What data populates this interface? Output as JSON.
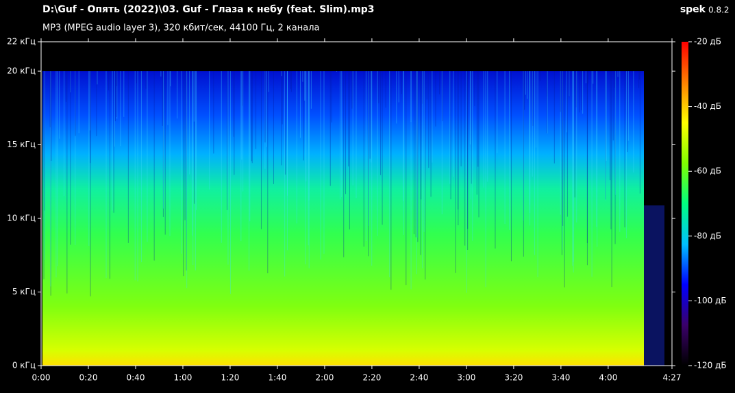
{
  "chart_data": {
    "type": "spectrogram",
    "title": "D:\\Guf - Опять (2022)\\03. Guf - Глаза к небу (feat. Slim).mp3",
    "subtitle": "MP3 (MPEG audio layer 3), 320 кбит/сек, 44100 Гц, 2 канала",
    "app_name": "spek",
    "app_version": "0.8.2",
    "xlim": [
      0,
      267
    ],
    "xticks": [
      {
        "value": 0,
        "label": "0:00"
      },
      {
        "value": 20,
        "label": "0:20"
      },
      {
        "value": 40,
        "label": "0:40"
      },
      {
        "value": 60,
        "label": "1:00"
      },
      {
        "value": 80,
        "label": "1:20"
      },
      {
        "value": 100,
        "label": "1:40"
      },
      {
        "value": 120,
        "label": "2:00"
      },
      {
        "value": 140,
        "label": "2:20"
      },
      {
        "value": 160,
        "label": "2:40"
      },
      {
        "value": 180,
        "label": "3:00"
      },
      {
        "value": 200,
        "label": "3:20"
      },
      {
        "value": 220,
        "label": "3:40"
      },
      {
        "value": 240,
        "label": "4:00"
      },
      {
        "value": 267,
        "label": "4:27"
      }
    ],
    "ylim": [
      0,
      22
    ],
    "yticks": [
      {
        "value": 0,
        "label": "0 кГц"
      },
      {
        "value": 5,
        "label": "5 кГц"
      },
      {
        "value": 10,
        "label": "10 кГц"
      },
      {
        "value": 15,
        "label": "15 кГц"
      },
      {
        "value": 20,
        "label": "20 кГц"
      },
      {
        "value": 22,
        "label": "22 кГц"
      }
    ],
    "zlim": [
      -120,
      -20
    ],
    "zticks": [
      {
        "value": -20,
        "label": "-20 дБ"
      },
      {
        "value": -40,
        "label": "-40 дБ"
      },
      {
        "value": -60,
        "label": "-60 дБ"
      },
      {
        "value": -80,
        "label": "-80 дБ"
      },
      {
        "value": -100,
        "label": "-100 дБ"
      },
      {
        "value": -120,
        "label": "-120 дБ"
      }
    ],
    "colormap": [
      "#000000",
      "#3a006a",
      "#0000ff",
      "#00c0ff",
      "#00ff80",
      "#80ff00",
      "#ffff00",
      "#ff8000",
      "#ff0000"
    ]
  }
}
